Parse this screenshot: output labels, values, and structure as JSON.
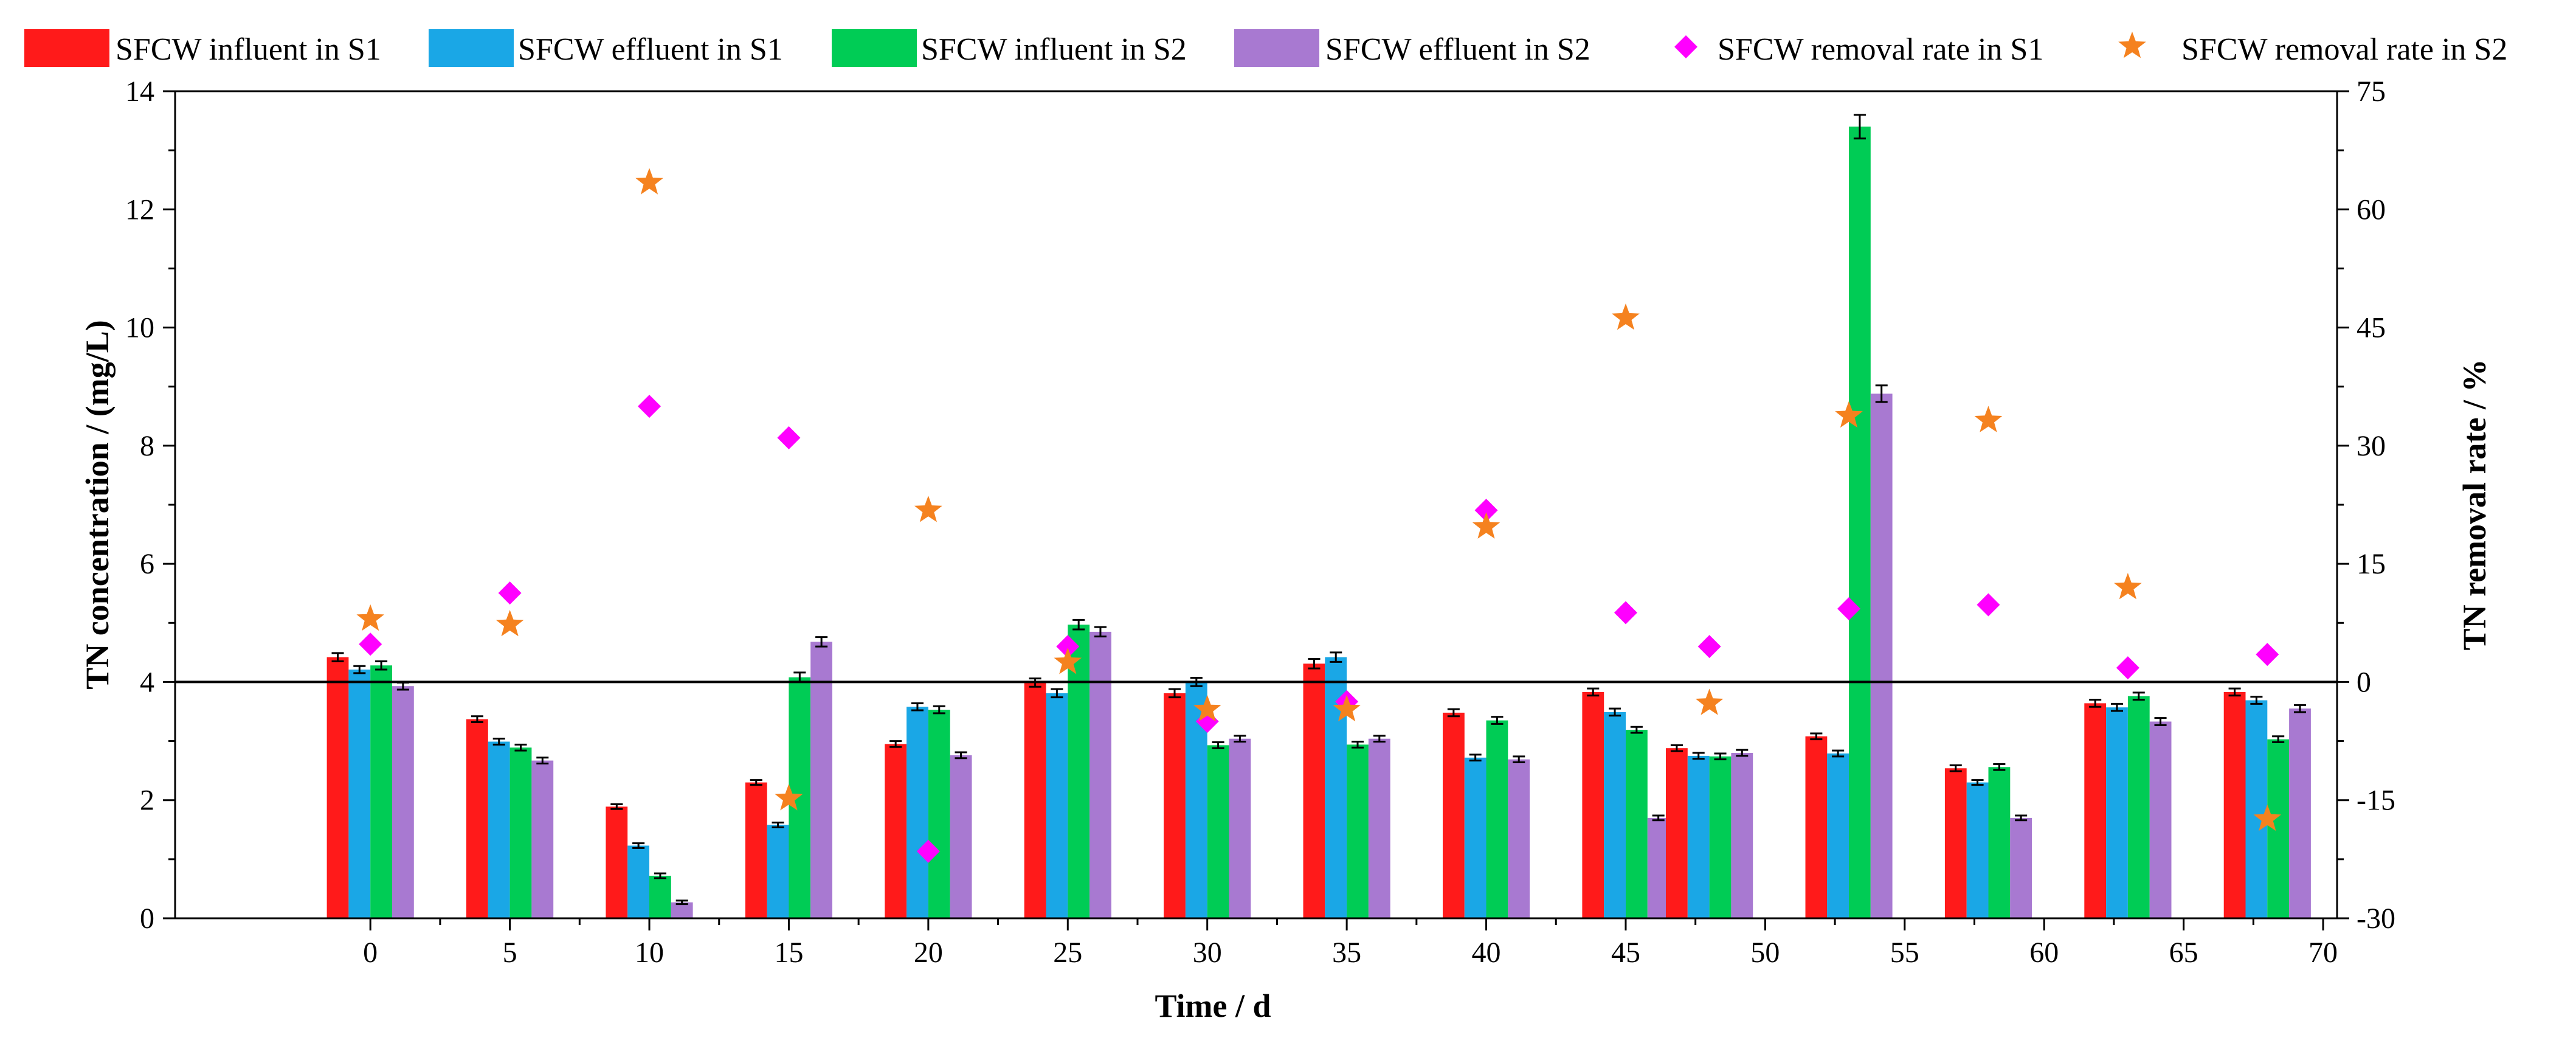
{
  "chart_data": {
    "type": "bar+scatter",
    "xlabel": "Time / d",
    "ylabel": "TN concentration / (mg/L)",
    "y2label": "TN removal rate / %",
    "xlim": [
      -7,
      70.5
    ],
    "ylim": [
      0,
      14
    ],
    "y2lim": [
      -30,
      75
    ],
    "xticks": [
      0,
      5,
      10,
      15,
      20,
      25,
      30,
      35,
      40,
      45,
      50,
      55,
      60,
      65,
      70
    ],
    "yticks": [
      0,
      2,
      4,
      6,
      8,
      10,
      12,
      14
    ],
    "y2ticks": [
      -30,
      -15,
      0,
      15,
      30,
      45,
      60,
      75
    ],
    "zero_line": 0,
    "colors": {
      "influent_s1": "#ff1a1a",
      "effluent_s1": "#1aa7e6",
      "influent_s2": "#00cc55",
      "effluent_s2": "#a879d1",
      "removal_s1": "#ff00ff",
      "removal_s2": "#f5821f"
    },
    "legend": {
      "influent_s1": "SFCW influent in S1",
      "effluent_s1": "SFCW effluent in S1",
      "influent_s2": "SFCW influent in S2",
      "effluent_s2": "SFCW effluent in S2",
      "removal_s1": "SFCW removal rate in S1",
      "removal_s2": "SFCW removal rate in S2"
    },
    "groups": [
      {
        "day": 0,
        "influent_s1": 4.42,
        "effluent_s1": 4.21,
        "influent_s2": 4.28,
        "effluent_s2": 3.93
      },
      {
        "day": 5,
        "influent_s1": 3.37,
        "effluent_s1": 2.99,
        "influent_s2": 2.89,
        "effluent_s2": 2.67
      },
      {
        "day": 10,
        "influent_s1": 1.89,
        "effluent_s1": 1.23,
        "influent_s2": 0.72,
        "effluent_s2": 0.27
      },
      {
        "day": 15,
        "influent_s1": 2.3,
        "effluent_s1": 1.58,
        "influent_s2": 4.08,
        "effluent_s2": 4.68
      },
      {
        "day": 20,
        "influent_s1": 2.95,
        "effluent_s1": 3.58,
        "influent_s2": 3.53,
        "effluent_s2": 2.76
      },
      {
        "day": 25,
        "influent_s1": 3.99,
        "effluent_s1": 3.81,
        "influent_s2": 4.97,
        "effluent_s2": 4.85
      },
      {
        "day": 30,
        "influent_s1": 3.81,
        "effluent_s1": 4.0,
        "influent_s2": 2.93,
        "effluent_s2": 3.04
      },
      {
        "day": 35,
        "influent_s1": 4.31,
        "effluent_s1": 4.42,
        "influent_s2": 2.94,
        "effluent_s2": 3.04
      },
      {
        "day": 40,
        "influent_s1": 3.48,
        "effluent_s1": 2.72,
        "influent_s2": 3.35,
        "effluent_s2": 2.69
      },
      {
        "day": 45,
        "influent_s1": 3.83,
        "effluent_s1": 3.49,
        "influent_s2": 3.19,
        "effluent_s2": 1.7
      },
      {
        "day": 48,
        "influent_s1": 2.88,
        "effluent_s1": 2.75,
        "influent_s2": 2.74,
        "effluent_s2": 2.8
      },
      {
        "day": 53,
        "influent_s1": 3.08,
        "effluent_s1": 2.79,
        "influent_s2": 13.4,
        "effluent_s2": 8.88
      },
      {
        "day": 58,
        "influent_s1": 2.54,
        "effluent_s1": 2.3,
        "influent_s2": 2.56,
        "effluent_s2": 1.7
      },
      {
        "day": 63,
        "influent_s1": 3.64,
        "effluent_s1": 3.57,
        "influent_s2": 3.76,
        "effluent_s2": 3.33
      },
      {
        "day": 68,
        "influent_s1": 3.83,
        "effluent_s1": 3.69,
        "influent_s2": 3.03,
        "effluent_s2": 3.55
      }
    ],
    "errors": [
      {
        "influent_s1": 0.07,
        "effluent_s1": 0.06,
        "influent_s2": 0.07,
        "effluent_s2": 0.06
      },
      {
        "influent_s1": 0.05,
        "effluent_s1": 0.05,
        "influent_s2": 0.05,
        "effluent_s2": 0.05
      },
      {
        "influent_s1": 0.04,
        "effluent_s1": 0.04,
        "influent_s2": 0.04,
        "effluent_s2": 0.03
      },
      {
        "influent_s1": 0.04,
        "effluent_s1": 0.04,
        "influent_s2": 0.08,
        "effluent_s2": 0.08
      },
      {
        "influent_s1": 0.05,
        "effluent_s1": 0.06,
        "influent_s2": 0.06,
        "effluent_s2": 0.05
      },
      {
        "influent_s1": 0.07,
        "effluent_s1": 0.07,
        "influent_s2": 0.08,
        "effluent_s2": 0.08
      },
      {
        "influent_s1": 0.07,
        "effluent_s1": 0.07,
        "influent_s2": 0.05,
        "effluent_s2": 0.05
      },
      {
        "influent_s1": 0.08,
        "effluent_s1": 0.08,
        "influent_s2": 0.05,
        "effluent_s2": 0.05
      },
      {
        "influent_s1": 0.06,
        "effluent_s1": 0.05,
        "influent_s2": 0.06,
        "effluent_s2": 0.05
      },
      {
        "influent_s1": 0.06,
        "effluent_s1": 0.06,
        "influent_s2": 0.05,
        "effluent_s2": 0.04
      },
      {
        "influent_s1": 0.05,
        "effluent_s1": 0.05,
        "influent_s2": 0.05,
        "effluent_s2": 0.05
      },
      {
        "influent_s1": 0.05,
        "effluent_s1": 0.05,
        "influent_s2": 0.2,
        "effluent_s2": 0.14
      },
      {
        "influent_s1": 0.05,
        "effluent_s1": 0.04,
        "influent_s2": 0.05,
        "effluent_s2": 0.04
      },
      {
        "influent_s1": 0.06,
        "effluent_s1": 0.06,
        "influent_s2": 0.06,
        "effluent_s2": 0.06
      },
      {
        "influent_s1": 0.06,
        "effluent_s1": 0.06,
        "influent_s2": 0.05,
        "effluent_s2": 0.06
      }
    ],
    "removal_s1": [
      {
        "day": 0,
        "value": 4.8
      },
      {
        "day": 5,
        "value": 11.3
      },
      {
        "day": 10,
        "value": 35.0
      },
      {
        "day": 15,
        "value": 31.0
      },
      {
        "day": 20,
        "value": -21.5
      },
      {
        "day": 25,
        "value": 4.5
      },
      {
        "day": 30,
        "value": -5.0
      },
      {
        "day": 35,
        "value": -2.5
      },
      {
        "day": 40,
        "value": 21.8
      },
      {
        "day": 45,
        "value": 8.8
      },
      {
        "day": 48,
        "value": 4.5
      },
      {
        "day": 53,
        "value": 9.3
      },
      {
        "day": 58,
        "value": 9.8
      },
      {
        "day": 63,
        "value": 1.8
      },
      {
        "day": 68,
        "value": 3.5
      }
    ],
    "removal_s2": [
      {
        "day": 0,
        "value": 8.0
      },
      {
        "day": 5,
        "value": 7.3
      },
      {
        "day": 10,
        "value": 63.4
      },
      {
        "day": 15,
        "value": -14.8
      },
      {
        "day": 20,
        "value": 21.8
      },
      {
        "day": 25,
        "value": 2.5
      },
      {
        "day": 30,
        "value": -3.5
      },
      {
        "day": 35,
        "value": -3.5
      },
      {
        "day": 40,
        "value": 19.7
      },
      {
        "day": 45,
        "value": 46.2
      },
      {
        "day": 48,
        "value": -2.7
      },
      {
        "day": 53,
        "value": 33.8
      },
      {
        "day": 58,
        "value": 33.2
      },
      {
        "day": 63,
        "value": 12.0
      },
      {
        "day": 68,
        "value": -17.4
      }
    ]
  }
}
